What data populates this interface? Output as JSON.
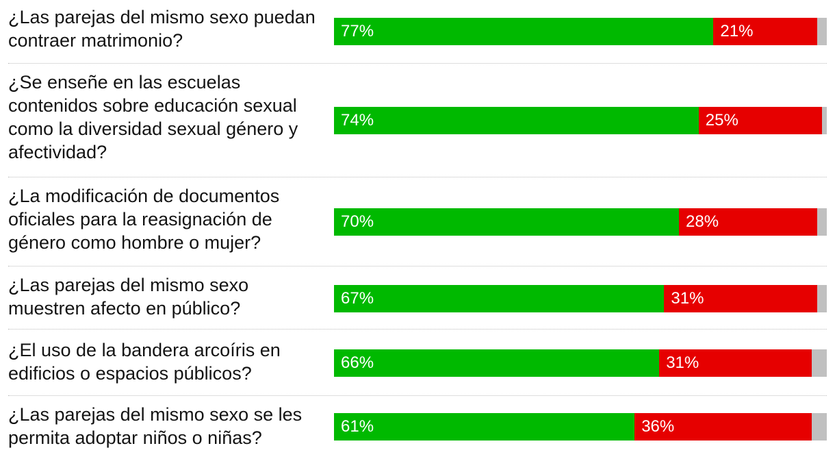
{
  "chart_data": {
    "type": "bar",
    "orientation": "horizontal",
    "stacked": true,
    "xlim": [
      0,
      100
    ],
    "colors": {
      "yes": "#00b900",
      "no": "#e60000",
      "other": "#c0c0c0"
    },
    "categories": [
      "¿Las parejas del mismo sexo puedan contraer matrimonio?",
      "¿Se enseñe en las escuelas contenidos sobre educación sexual como la diversidad sexual género y afectividad?",
      "¿La modificación de documentos oficiales para la reasignación de género como hombre o mujer?",
      "¿Las parejas del mismo sexo muestren afecto en público?",
      "¿El uso de la bandera arcoíris en edificios o espacios públicos?",
      "¿Las parejas del mismo sexo se les permita adoptar niños o niñas?"
    ],
    "series": [
      {
        "values": [
          77,
          74,
          70,
          67,
          66,
          61
        ],
        "labels": [
          "77%",
          "74%",
          "70%",
          "67%",
          "66%",
          "61%"
        ]
      },
      {
        "values": [
          21,
          25,
          28,
          31,
          31,
          36
        ],
        "labels": [
          "21%",
          "25%",
          "28%",
          "31%",
          "31%",
          "36%"
        ]
      },
      {
        "values": [
          2,
          1,
          2,
          2,
          3,
          3
        ]
      }
    ]
  }
}
